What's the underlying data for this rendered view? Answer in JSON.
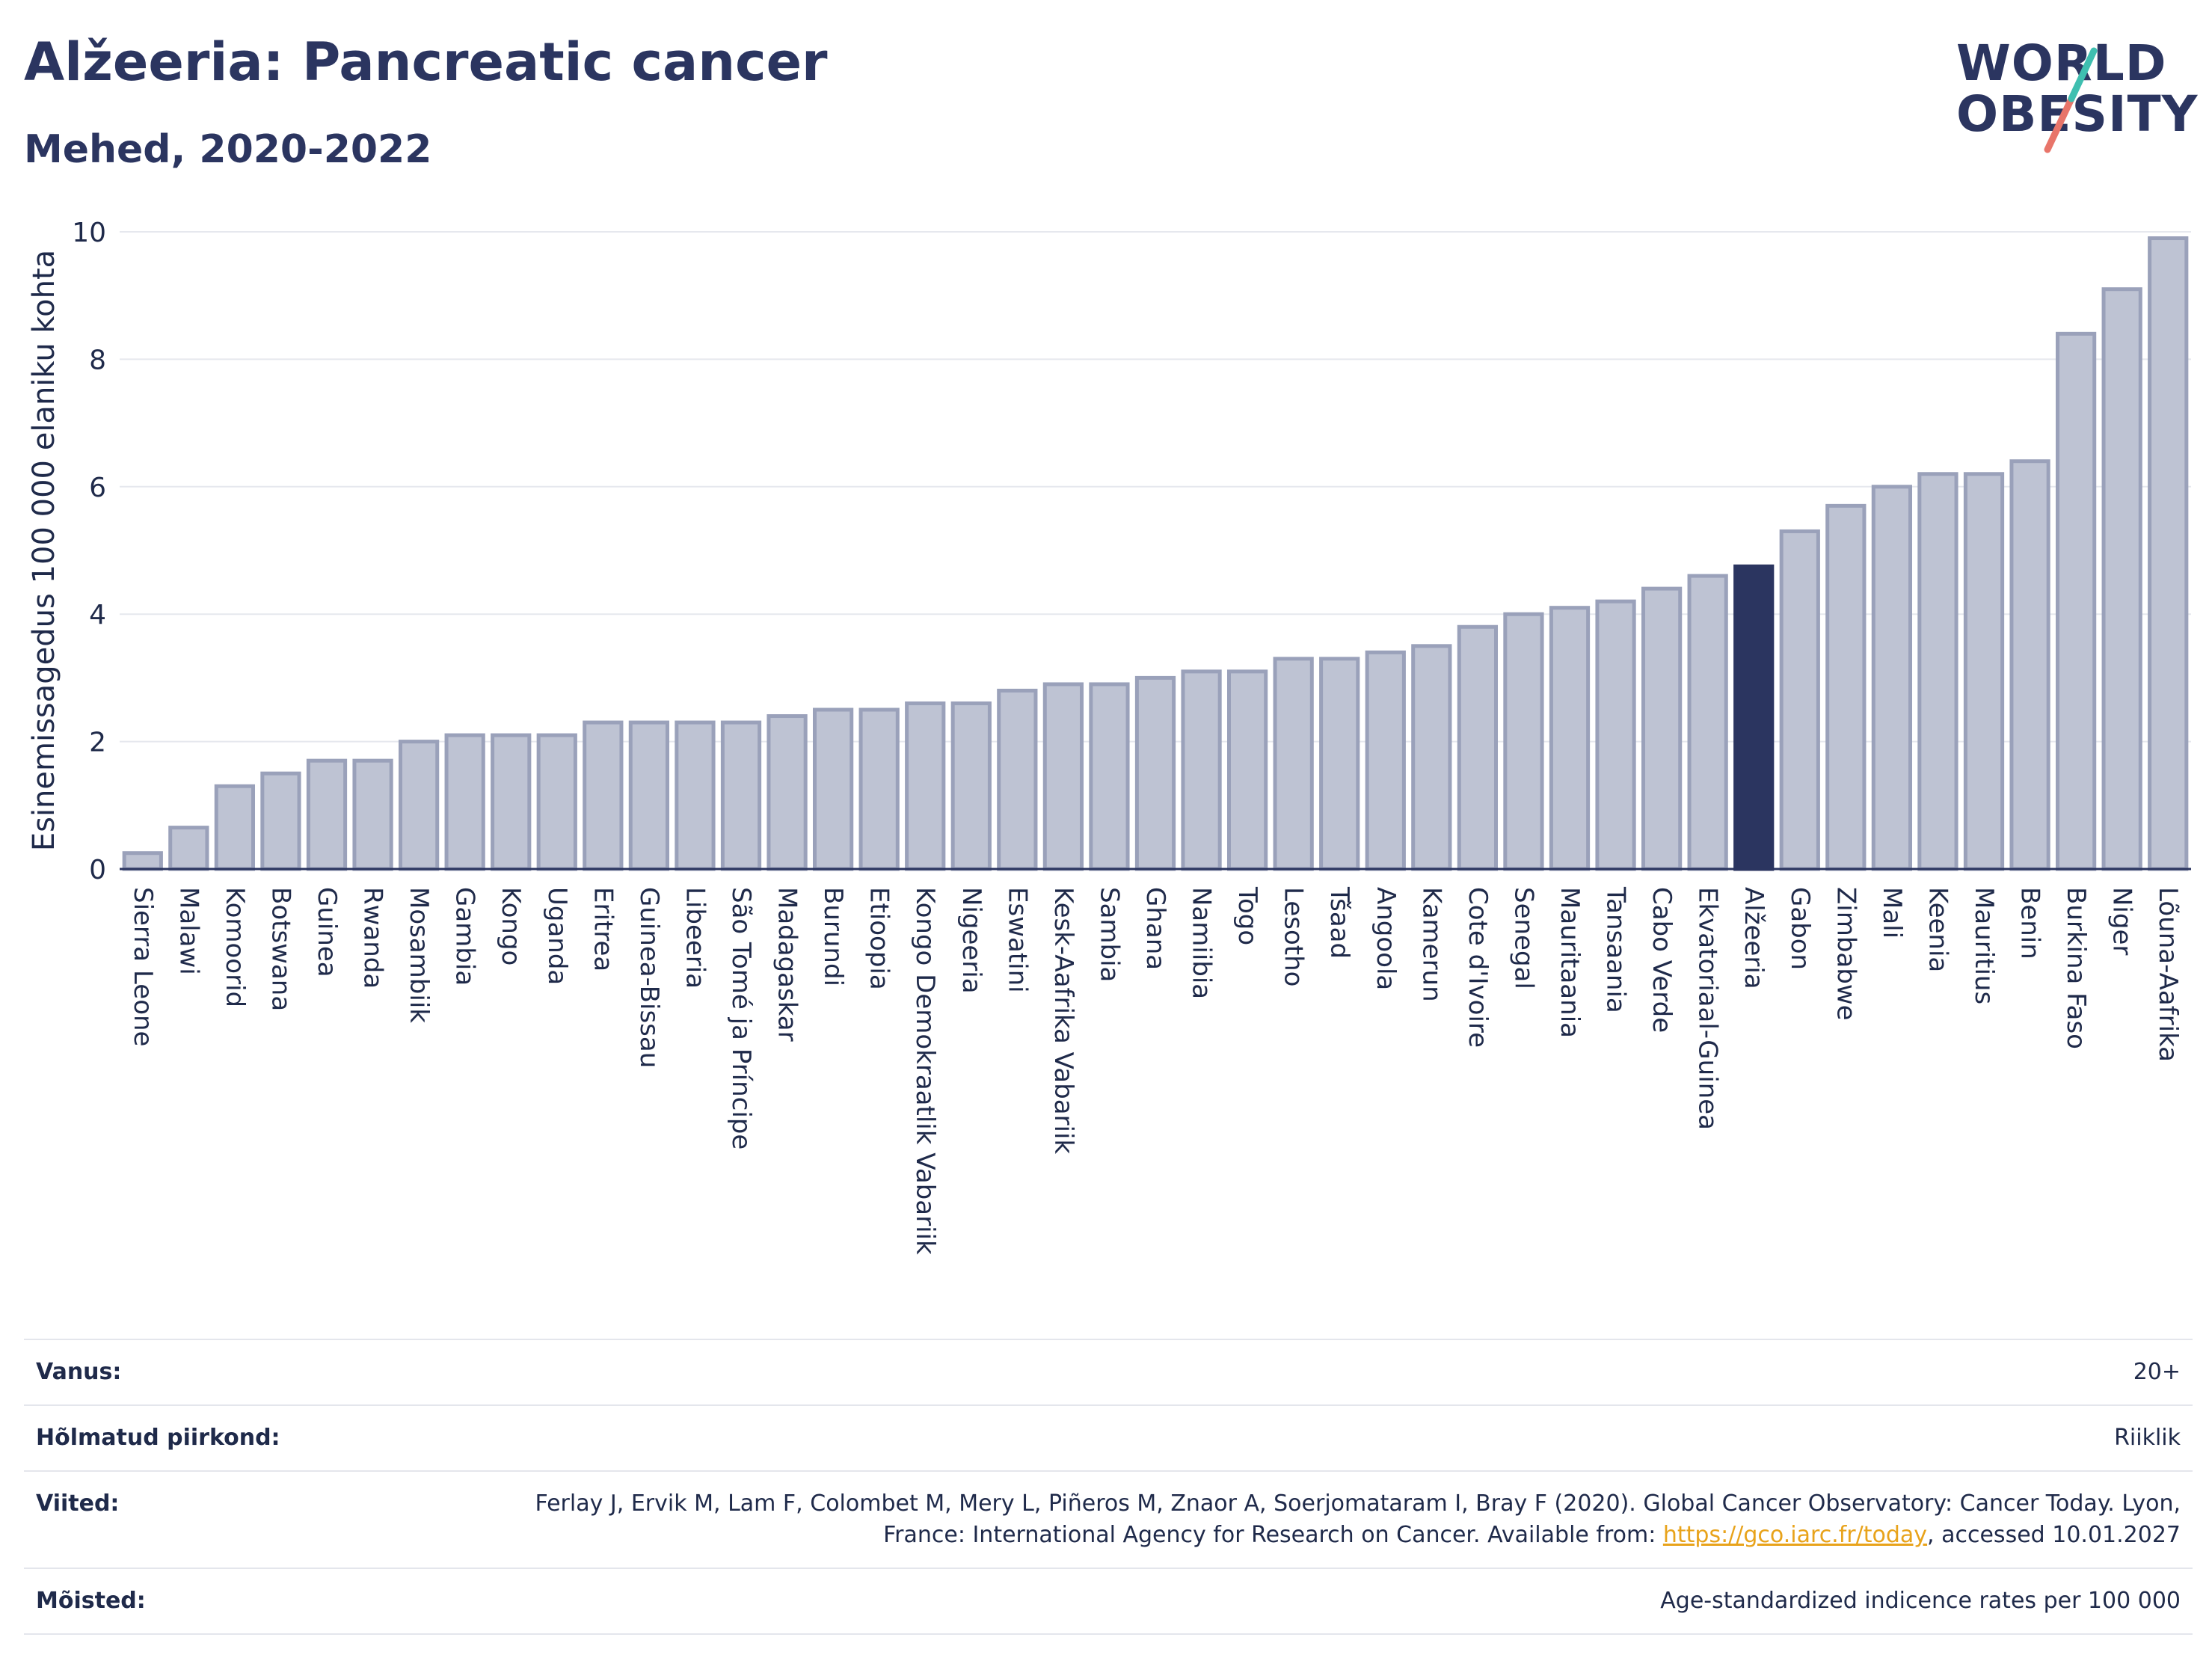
{
  "header": {
    "title": "Alžeeria: Pancreatic cancer",
    "subtitle": "Mehed, 2020-2022"
  },
  "logo": {
    "line1": "WORLD",
    "line2": "OBESITY"
  },
  "colors": {
    "bar": "#bec3d3",
    "bar_border": "#9aa1ba",
    "highlight": "#2b3560",
    "grid": "#e6e8ee",
    "axis": "#2b3560"
  },
  "chart_data": {
    "type": "bar",
    "ylabel": "Esinemissagedus 100 000 elaniku kohta",
    "ylim": [
      0,
      10
    ],
    "yticks": [
      0,
      2,
      4,
      6,
      8,
      10
    ],
    "grid": true,
    "highlight": "Alžeeria",
    "categories": [
      "Sierra Leone",
      "Malawi",
      "Komoorid",
      "Botswana",
      "Guinea",
      "Rwanda",
      "Mosambiik",
      "Gambia",
      "Kongo",
      "Uganda",
      "Eritrea",
      "Guinea-Bissau",
      "Libeeria",
      "São Tomé ja Príncipe",
      "Madagaskar",
      "Burundi",
      "Etioopia",
      "Kongo Demokraatlik Vabariik",
      "Nigeeria",
      "Eswatini",
      "Kesk-Aafrika Vabariik",
      "Sambia",
      "Ghana",
      "Namiibia",
      "Togo",
      "Lesotho",
      "Tšaad",
      "Angoola",
      "Kamerun",
      "Cote d'Ivoire",
      "Senegal",
      "Mauritaania",
      "Tansaania",
      "Cabo Verde",
      "Ekvatoriaal-Guinea",
      "Alžeeria",
      "Gabon",
      "Zimbabwe",
      "Mali",
      "Keenia",
      "Mauritius",
      "Benin",
      "Burkina Faso",
      "Niger",
      "Lõuna-Aafrika"
    ],
    "values": [
      0.25,
      0.65,
      1.3,
      1.5,
      1.7,
      1.7,
      2.0,
      2.1,
      2.1,
      2.1,
      2.3,
      2.3,
      2.3,
      2.3,
      2.4,
      2.5,
      2.5,
      2.6,
      2.6,
      2.8,
      2.9,
      2.9,
      3.0,
      3.1,
      3.1,
      3.3,
      3.3,
      3.4,
      3.5,
      3.8,
      4.0,
      4.1,
      4.2,
      4.4,
      4.6,
      4.75,
      5.3,
      5.7,
      6.0,
      6.2,
      6.2,
      6.4,
      8.4,
      9.1,
      9.9
    ]
  },
  "meta": [
    {
      "key": "Vanus:",
      "value": "20+"
    },
    {
      "key": "Hõlmatud piirkond:",
      "value": "Riiklik"
    },
    {
      "key": "Viited:",
      "value_prefix": "Ferlay J, Ervik M, Lam F, Colombet M, Mery L, Piñeros M, Znaor A, Soerjomataram I, Bray F (2020). Global Cancer Observatory: Cancer Today. Lyon, France: International Agency for Research on Cancer. Available from: ",
      "link": "https://gco.iarc.fr/today",
      "value_suffix": ", accessed 10.01.2027"
    },
    {
      "key": "Mõisted:",
      "value": "Age-standardized indicence rates per 100 000"
    }
  ]
}
